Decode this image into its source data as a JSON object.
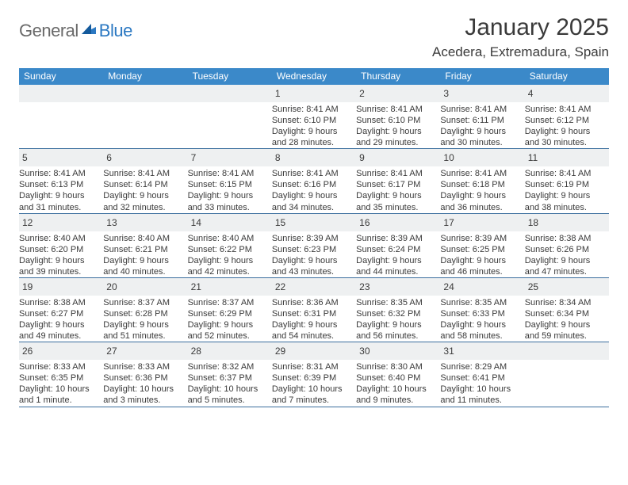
{
  "logo": {
    "general": "General",
    "blue": "Blue"
  },
  "title": "January 2025",
  "location": "Acedera, Extremadura, Spain",
  "colors": {
    "header_bg": "#3b89c9",
    "header_text": "#ffffff",
    "daynum_bg": "#eef0f1",
    "border": "#3b6e9e",
    "text": "#3a3a3a",
    "logo_grey": "#6a6a6a",
    "logo_blue": "#2b78c2"
  },
  "day_headers": [
    "Sunday",
    "Monday",
    "Tuesday",
    "Wednesday",
    "Thursday",
    "Friday",
    "Saturday"
  ],
  "weeks": [
    [
      {
        "n": "",
        "lines": []
      },
      {
        "n": "",
        "lines": []
      },
      {
        "n": "",
        "lines": []
      },
      {
        "n": "1",
        "lines": [
          "Sunrise: 8:41 AM",
          "Sunset: 6:10 PM",
          "Daylight: 9 hours",
          "and 28 minutes."
        ]
      },
      {
        "n": "2",
        "lines": [
          "Sunrise: 8:41 AM",
          "Sunset: 6:10 PM",
          "Daylight: 9 hours",
          "and 29 minutes."
        ]
      },
      {
        "n": "3",
        "lines": [
          "Sunrise: 8:41 AM",
          "Sunset: 6:11 PM",
          "Daylight: 9 hours",
          "and 30 minutes."
        ]
      },
      {
        "n": "4",
        "lines": [
          "Sunrise: 8:41 AM",
          "Sunset: 6:12 PM",
          "Daylight: 9 hours",
          "and 30 minutes."
        ]
      }
    ],
    [
      {
        "n": "5",
        "lines": [
          "Sunrise: 8:41 AM",
          "Sunset: 6:13 PM",
          "Daylight: 9 hours",
          "and 31 minutes."
        ]
      },
      {
        "n": "6",
        "lines": [
          "Sunrise: 8:41 AM",
          "Sunset: 6:14 PM",
          "Daylight: 9 hours",
          "and 32 minutes."
        ]
      },
      {
        "n": "7",
        "lines": [
          "Sunrise: 8:41 AM",
          "Sunset: 6:15 PM",
          "Daylight: 9 hours",
          "and 33 minutes."
        ]
      },
      {
        "n": "8",
        "lines": [
          "Sunrise: 8:41 AM",
          "Sunset: 6:16 PM",
          "Daylight: 9 hours",
          "and 34 minutes."
        ]
      },
      {
        "n": "9",
        "lines": [
          "Sunrise: 8:41 AM",
          "Sunset: 6:17 PM",
          "Daylight: 9 hours",
          "and 35 minutes."
        ]
      },
      {
        "n": "10",
        "lines": [
          "Sunrise: 8:41 AM",
          "Sunset: 6:18 PM",
          "Daylight: 9 hours",
          "and 36 minutes."
        ]
      },
      {
        "n": "11",
        "lines": [
          "Sunrise: 8:41 AM",
          "Sunset: 6:19 PM",
          "Daylight: 9 hours",
          "and 38 minutes."
        ]
      }
    ],
    [
      {
        "n": "12",
        "lines": [
          "Sunrise: 8:40 AM",
          "Sunset: 6:20 PM",
          "Daylight: 9 hours",
          "and 39 minutes."
        ]
      },
      {
        "n": "13",
        "lines": [
          "Sunrise: 8:40 AM",
          "Sunset: 6:21 PM",
          "Daylight: 9 hours",
          "and 40 minutes."
        ]
      },
      {
        "n": "14",
        "lines": [
          "Sunrise: 8:40 AM",
          "Sunset: 6:22 PM",
          "Daylight: 9 hours",
          "and 42 minutes."
        ]
      },
      {
        "n": "15",
        "lines": [
          "Sunrise: 8:39 AM",
          "Sunset: 6:23 PM",
          "Daylight: 9 hours",
          "and 43 minutes."
        ]
      },
      {
        "n": "16",
        "lines": [
          "Sunrise: 8:39 AM",
          "Sunset: 6:24 PM",
          "Daylight: 9 hours",
          "and 44 minutes."
        ]
      },
      {
        "n": "17",
        "lines": [
          "Sunrise: 8:39 AM",
          "Sunset: 6:25 PM",
          "Daylight: 9 hours",
          "and 46 minutes."
        ]
      },
      {
        "n": "18",
        "lines": [
          "Sunrise: 8:38 AM",
          "Sunset: 6:26 PM",
          "Daylight: 9 hours",
          "and 47 minutes."
        ]
      }
    ],
    [
      {
        "n": "19",
        "lines": [
          "Sunrise: 8:38 AM",
          "Sunset: 6:27 PM",
          "Daylight: 9 hours",
          "and 49 minutes."
        ]
      },
      {
        "n": "20",
        "lines": [
          "Sunrise: 8:37 AM",
          "Sunset: 6:28 PM",
          "Daylight: 9 hours",
          "and 51 minutes."
        ]
      },
      {
        "n": "21",
        "lines": [
          "Sunrise: 8:37 AM",
          "Sunset: 6:29 PM",
          "Daylight: 9 hours",
          "and 52 minutes."
        ]
      },
      {
        "n": "22",
        "lines": [
          "Sunrise: 8:36 AM",
          "Sunset: 6:31 PM",
          "Daylight: 9 hours",
          "and 54 minutes."
        ]
      },
      {
        "n": "23",
        "lines": [
          "Sunrise: 8:35 AM",
          "Sunset: 6:32 PM",
          "Daylight: 9 hours",
          "and 56 minutes."
        ]
      },
      {
        "n": "24",
        "lines": [
          "Sunrise: 8:35 AM",
          "Sunset: 6:33 PM",
          "Daylight: 9 hours",
          "and 58 minutes."
        ]
      },
      {
        "n": "25",
        "lines": [
          "Sunrise: 8:34 AM",
          "Sunset: 6:34 PM",
          "Daylight: 9 hours",
          "and 59 minutes."
        ]
      }
    ],
    [
      {
        "n": "26",
        "lines": [
          "Sunrise: 8:33 AM",
          "Sunset: 6:35 PM",
          "Daylight: 10 hours",
          "and 1 minute."
        ]
      },
      {
        "n": "27",
        "lines": [
          "Sunrise: 8:33 AM",
          "Sunset: 6:36 PM",
          "Daylight: 10 hours",
          "and 3 minutes."
        ]
      },
      {
        "n": "28",
        "lines": [
          "Sunrise: 8:32 AM",
          "Sunset: 6:37 PM",
          "Daylight: 10 hours",
          "and 5 minutes."
        ]
      },
      {
        "n": "29",
        "lines": [
          "Sunrise: 8:31 AM",
          "Sunset: 6:39 PM",
          "Daylight: 10 hours",
          "and 7 minutes."
        ]
      },
      {
        "n": "30",
        "lines": [
          "Sunrise: 8:30 AM",
          "Sunset: 6:40 PM",
          "Daylight: 10 hours",
          "and 9 minutes."
        ]
      },
      {
        "n": "31",
        "lines": [
          "Sunrise: 8:29 AM",
          "Sunset: 6:41 PM",
          "Daylight: 10 hours",
          "and 11 minutes."
        ]
      },
      {
        "n": "",
        "lines": []
      }
    ]
  ]
}
